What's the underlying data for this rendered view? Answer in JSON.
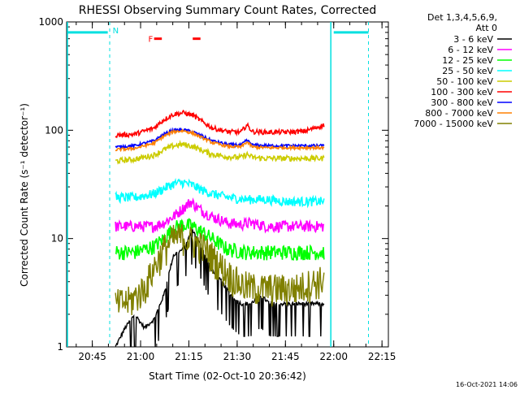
{
  "chart_data": {
    "type": "line",
    "title": "RHESSI Observing Summary Count Rates, Corrected",
    "xlabel": "Start Time (02-Oct-10 20:36:42)",
    "ylabel": "Corrected Count Rate (s⁻¹ detector⁻¹)",
    "yscale": "log",
    "ylim": [
      1,
      1000
    ],
    "xlim": [
      20.617,
      22.283
    ],
    "x_unit": "hours UT",
    "xticks": [
      {
        "value": 20.75,
        "label": "20:45"
      },
      {
        "value": 21.0,
        "label": "21:00"
      },
      {
        "value": 21.25,
        "label": "21:15"
      },
      {
        "value": 21.5,
        "label": "21:30"
      },
      {
        "value": 21.75,
        "label": "21:45"
      },
      {
        "value": 22.0,
        "label": "22:00"
      },
      {
        "value": 22.25,
        "label": "22:15"
      }
    ],
    "yticks": [
      {
        "value": 1,
        "label": "1"
      },
      {
        "value": 10,
        "label": "10"
      },
      {
        "value": 100,
        "label": "100"
      },
      {
        "value": 1000,
        "label": "1000"
      }
    ],
    "legend_header": [
      "Det 1,3,4,5,6,9,",
      "Att 0"
    ],
    "series": [
      {
        "name": "3 - 6 keV",
        "color": "#000000",
        "x": [
          20.87,
          20.92,
          20.97,
          21.02,
          21.07,
          21.12,
          21.17,
          21.22,
          21.27,
          21.32,
          21.37,
          21.42,
          21.47,
          21.52,
          21.57,
          21.62,
          21.67,
          21.72,
          21.77,
          21.82,
          21.87,
          21.9,
          21.95
        ],
        "values": [
          1.0,
          1.5,
          2.0,
          1.5,
          1.8,
          3.0,
          7.0,
          8.0,
          12.0,
          8.0,
          5.0,
          4.0,
          3.0,
          2.5,
          2.5,
          3.0,
          2.5,
          2.5,
          2.5,
          2.5,
          2.5,
          2.5,
          2.5
        ]
      },
      {
        "name": "6 - 12 keV",
        "color": "#ff00ff",
        "x": [
          20.87,
          20.97,
          21.07,
          21.12,
          21.17,
          21.22,
          21.26,
          21.3,
          21.37,
          21.45,
          21.52,
          21.57,
          21.65,
          21.75,
          21.85,
          21.95
        ],
        "values": [
          13,
          13,
          13,
          14,
          16,
          19,
          22,
          19,
          16,
          14,
          13.5,
          14,
          13,
          13,
          13,
          13
        ]
      },
      {
        "name": "12 - 25 keV",
        "color": "#00ff00",
        "x": [
          20.87,
          20.97,
          21.07,
          21.12,
          21.17,
          21.22,
          21.27,
          21.32,
          21.37,
          21.45,
          21.55,
          21.65,
          21.75,
          21.85,
          21.95
        ],
        "values": [
          7.5,
          7.5,
          8.5,
          10.0,
          12.5,
          13.5,
          13.0,
          11.5,
          10.0,
          8.0,
          7.5,
          7.5,
          7.5,
          7.5,
          7.5
        ]
      },
      {
        "name": "25 - 50 keV",
        "color": "#00ffff",
        "x": [
          20.87,
          20.97,
          21.07,
          21.12,
          21.17,
          21.22,
          21.27,
          21.32,
          21.37,
          21.45,
          21.55,
          21.65,
          21.75,
          21.85,
          21.95
        ],
        "values": [
          24,
          24,
          26,
          29,
          32,
          33,
          31,
          28,
          26,
          24,
          23,
          23,
          22,
          22,
          22
        ]
      },
      {
        "name": "50 - 100 keV",
        "color": "#cccc00",
        "x": [
          20.87,
          20.97,
          21.07,
          21.12,
          21.17,
          21.22,
          21.27,
          21.32,
          21.37,
          21.45,
          21.52,
          21.55,
          21.58,
          21.65,
          21.75,
          21.85,
          21.95
        ],
        "values": [
          52,
          54,
          59,
          66,
          72,
          74,
          71,
          65,
          60,
          57,
          56,
          60,
          56,
          55,
          55,
          55,
          55
        ]
      },
      {
        "name": "100 - 300 keV",
        "color": "#ff0000",
        "x": [
          20.87,
          20.97,
          21.07,
          21.12,
          21.17,
          21.22,
          21.27,
          21.32,
          21.37,
          21.45,
          21.52,
          21.55,
          21.58,
          21.65,
          21.75,
          21.85,
          21.95
        ],
        "values": [
          90,
          92,
          105,
          125,
          140,
          145,
          138,
          120,
          105,
          97,
          96,
          112,
          97,
          96,
          96,
          98,
          112
        ]
      },
      {
        "name": "300 - 800 keV",
        "color": "#0000ff",
        "x": [
          20.87,
          20.97,
          21.07,
          21.12,
          21.17,
          21.22,
          21.27,
          21.32,
          21.37,
          21.45,
          21.52,
          21.55,
          21.58,
          21.65,
          21.75,
          21.85,
          21.95
        ],
        "values": [
          70,
          72,
          80,
          92,
          100,
          101,
          97,
          88,
          80,
          74,
          73,
          81,
          73,
          72,
          72,
          72,
          72
        ]
      },
      {
        "name": "800 - 7000 keV",
        "color": "#ff8000",
        "x": [
          20.87,
          20.97,
          21.07,
          21.12,
          21.17,
          21.22,
          21.27,
          21.32,
          21.37,
          21.45,
          21.52,
          21.55,
          21.58,
          21.65,
          21.75,
          21.85,
          21.95
        ],
        "values": [
          66,
          68,
          76,
          88,
          97,
          99,
          94,
          85,
          77,
          71,
          70,
          78,
          70,
          69,
          69,
          69,
          69
        ]
      },
      {
        "name": "7000 - 15000 keV",
        "color": "#808000",
        "x": [
          20.87,
          20.95,
          21.02,
          21.07,
          21.12,
          21.17,
          21.22,
          21.27,
          21.32,
          21.37,
          21.42,
          21.47,
          21.52,
          21.6,
          21.7,
          21.8,
          21.9,
          21.95
        ],
        "values": [
          2.5,
          2.7,
          3.5,
          5.5,
          8.0,
          10.0,
          10.5,
          9.5,
          8.5,
          7.0,
          5.5,
          4.5,
          3.8,
          3.5,
          3.5,
          3.5,
          4.0,
          4.2
        ]
      }
    ],
    "annotations": {
      "night_left_x": 20.83,
      "night_right_x": 22.18,
      "saa_label": "N",
      "saa_label_x": 20.855,
      "flare_label": "F",
      "flare_label_x": 21.04,
      "flare_segments": [
        [
          21.07,
          21.11
        ],
        [
          21.27,
          21.31
        ]
      ],
      "cyan_bars": [
        [
          20.62,
          20.83
        ],
        [
          22.0,
          22.18
        ]
      ],
      "solid_vline_x": 21.985,
      "dashed_lines_x": [
        20.84,
        22.18
      ],
      "cyan_bar_y": 800,
      "flare_y": 700
    },
    "timestamp": "16-Oct-2021 14:06"
  }
}
